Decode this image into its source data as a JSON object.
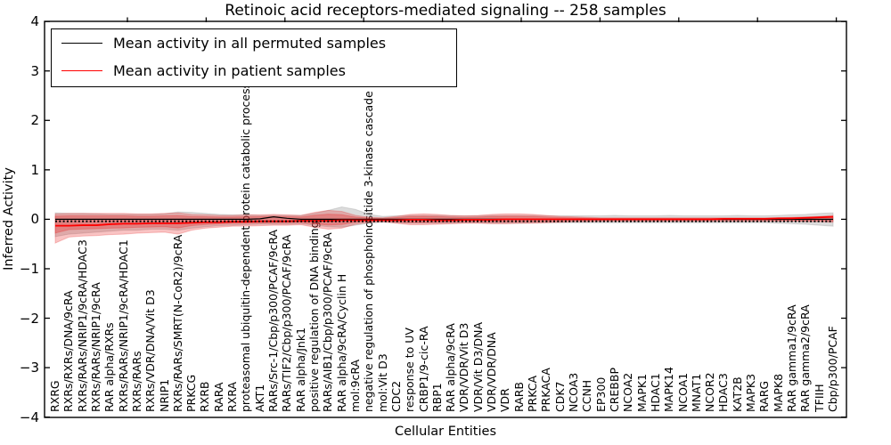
{
  "chart_data": {
    "type": "line",
    "title": "Retinoic acid receptors-mediated signaling -- 258 samples",
    "xlabel": "Cellular Entities",
    "ylabel": "Inferred Activity",
    "ylim": [
      -4,
      4
    ],
    "yticks": [
      4,
      3,
      2,
      1,
      0,
      -1,
      -2,
      -3,
      -4
    ],
    "grid": false,
    "legend_position": "upper left",
    "legend": [
      {
        "label": "Mean activity in all permuted samples",
        "color": "#000000"
      },
      {
        "label": "Mean activity in patient samples",
        "color": "#ff0000"
      }
    ],
    "categories": [
      "RXRG",
      "RXRs/RXRs/DNA/9cRA",
      "RXRs/RARs/NRIP1/9cRA/HDAC3",
      "RXRs/RARs/NRIP1/9cRA",
      "RAR alpha/RXRs",
      "RXRs/RARs/NRIP1/9cRA/HDAC1",
      "RXRs/RARs",
      "RXRs/VDR/DNA/Vit D3",
      "NRIP1",
      "RXRs/RARs/SMRT(N-CoR2)/9cRA",
      "PRKCG",
      "RXRB",
      "RARA",
      "RXRA",
      "proteasomal ubiquitin-dependent protein catabolic process",
      "AKT1",
      "RARs/Src-1/Cbp/p300/PCAF/9cRA",
      "RARs/TIF2/Cbp/p300/PCAF/9cRA",
      "RAR alpha/Jnk1",
      "positive regulation of DNA binding",
      "RARs/AIB1/Cbp/p300/PCAF/9cRA",
      "RAR alpha/9cRA/Cyclin H",
      "mol:9cRA",
      "negative regulation of phosphoinositide 3-kinase cascade",
      "mol:Vit D3",
      "CDC2",
      "response to UV",
      "CRBP1/9-cic-RA",
      "RBP1",
      "RAR alpha/9cRA",
      "VDR/VDR/Vit D3",
      "VDR/Vit D3/DNA",
      "VDR/VDR/DNA",
      "VDR",
      "RARB",
      "PRKCA",
      "PRKACA",
      "CDK7",
      "NCOA3",
      "CCNH",
      "EP300",
      "CREBBP",
      "NCOA2",
      "MAPK1",
      "HDAC1",
      "MAPK14",
      "NCOA1",
      "MNAT1",
      "NCOR2",
      "HDAC3",
      "KAT2B",
      "MAPK3",
      "RARG",
      "MAPK8",
      "RAR gamma1/9cRA",
      "RAR gamma2/9cRA",
      "TFIIH",
      "Cbp/p300/PCAF"
    ],
    "series": [
      {
        "name": "Mean activity in all permuted samples",
        "color": "#000000",
        "style": "solid",
        "linewidth": 1.2,
        "values": [
          0,
          0,
          0,
          0,
          0,
          0,
          0,
          0,
          0,
          0,
          0,
          0,
          0,
          0,
          0,
          0.01,
          0.05,
          0.02,
          0,
          0,
          0,
          0,
          0,
          0,
          0,
          0,
          0,
          0,
          0,
          0,
          0,
          0,
          0,
          0,
          0,
          0,
          0,
          0,
          0,
          0,
          0,
          0,
          0,
          0,
          0,
          0,
          0,
          0,
          0,
          0,
          0,
          0,
          0,
          0,
          0,
          0,
          0,
          0
        ]
      },
      {
        "name": "Mean activity in patient samples",
        "color": "#ff0000",
        "style": "solid",
        "linewidth": 1.8,
        "values": [
          -0.13,
          -0.13,
          -0.12,
          -0.12,
          -0.1,
          -0.09,
          -0.09,
          -0.08,
          -0.08,
          -0.08,
          -0.07,
          -0.06,
          -0.06,
          -0.05,
          -0.05,
          -0.04,
          -0.04,
          -0.04,
          -0.03,
          -0.03,
          -0.03,
          -0.02,
          -0.02,
          -0.02,
          -0.02,
          -0.02,
          -0.01,
          -0.01,
          -0.02,
          -0.02,
          -0.01,
          -0.01,
          -0.01,
          0,
          0,
          0,
          0,
          0,
          0,
          0,
          0,
          0,
          0,
          0,
          0,
          0,
          0,
          0,
          0,
          0.01,
          0.01,
          0.01,
          0.01,
          0.02,
          0.02,
          0.03,
          0.04,
          0.05
        ]
      },
      {
        "name": "permuted baseline (dotted)",
        "color": "#000000",
        "style": "dotted",
        "linewidth": 2,
        "constant": -0.04
      }
    ],
    "bands": [
      {
        "name": "permuted samples spread",
        "color": "#808080",
        "opacity": 0.28,
        "upper": [
          0.13,
          0.12,
          0.12,
          0.11,
          0.1,
          0.1,
          0.1,
          0.1,
          0.11,
          0.15,
          0.14,
          0.12,
          0.1,
          0.09,
          0.09,
          0.08,
          0.08,
          0.08,
          0.08,
          0.12,
          0.18,
          0.25,
          0.2,
          0.1,
          0.06,
          0.07,
          0.08,
          0.08,
          0.08,
          0.07,
          0.07,
          0.07,
          0.08,
          0.08,
          0.08,
          0.08,
          0.07,
          0.07,
          0.07,
          0.07,
          0.07,
          0.08,
          0.07,
          0.07,
          0.07,
          0.08,
          0.07,
          0.07,
          0.07,
          0.07,
          0.08,
          0.07,
          0.07,
          0.08,
          0.09,
          0.1,
          0.12,
          0.13
        ],
        "lower": [
          -0.35,
          -0.3,
          -0.28,
          -0.26,
          -0.24,
          -0.22,
          -0.22,
          -0.2,
          -0.2,
          -0.22,
          -0.18,
          -0.15,
          -0.13,
          -0.12,
          -0.11,
          -0.1,
          -0.1,
          -0.1,
          -0.09,
          -0.12,
          -0.15,
          -0.16,
          -0.12,
          -0.08,
          -0.06,
          -0.07,
          -0.08,
          -0.08,
          -0.08,
          -0.08,
          -0.07,
          -0.07,
          -0.08,
          -0.08,
          -0.08,
          -0.07,
          -0.07,
          -0.07,
          -0.07,
          -0.07,
          -0.07,
          -0.07,
          -0.07,
          -0.07,
          -0.07,
          -0.07,
          -0.07,
          -0.07,
          -0.07,
          -0.07,
          -0.07,
          -0.07,
          -0.07,
          -0.08,
          -0.09,
          -0.1,
          -0.12,
          -0.14
        ]
      },
      {
        "name": "patient samples spread (outer)",
        "color": "#e82323",
        "opacity": 0.27,
        "upper": [
          0.11,
          0.12,
          0.12,
          0.12,
          0.12,
          0.12,
          0.11,
          0.11,
          0.12,
          0.13,
          0.1,
          0.09,
          0.08,
          0.08,
          0.09,
          0.09,
          0.1,
          0.09,
          0.08,
          0.14,
          0.18,
          0.16,
          0.08,
          0.04,
          0.03,
          0.06,
          0.1,
          0.11,
          0.1,
          0.08,
          0.07,
          0.08,
          0.1,
          0.11,
          0.11,
          0.1,
          0.08,
          0.06,
          0.05,
          0.04,
          0.03,
          0.03,
          0.03,
          0.03,
          0.03,
          0.03,
          0.03,
          0.03,
          0.03,
          0.03,
          0.03,
          0.03,
          0.03,
          0.03,
          0.04,
          0.05,
          0.06,
          0.08
        ],
        "lower": [
          -0.48,
          -0.36,
          -0.34,
          -0.33,
          -0.31,
          -0.3,
          -0.28,
          -0.27,
          -0.26,
          -0.3,
          -0.22,
          -0.18,
          -0.16,
          -0.14,
          -0.14,
          -0.13,
          -0.12,
          -0.12,
          -0.11,
          -0.16,
          -0.2,
          -0.18,
          -0.1,
          -0.06,
          -0.05,
          -0.08,
          -0.11,
          -0.11,
          -0.1,
          -0.09,
          -0.08,
          -0.08,
          -0.09,
          -0.09,
          -0.08,
          -0.08,
          -0.07,
          -0.06,
          -0.05,
          -0.05,
          -0.04,
          -0.04,
          -0.04,
          -0.04,
          -0.04,
          -0.04,
          -0.04,
          -0.04,
          -0.04,
          -0.04,
          -0.04,
          -0.04,
          -0.04,
          -0.04,
          -0.04,
          -0.05,
          -0.05,
          -0.06
        ]
      },
      {
        "name": "patient samples spread (inner)",
        "color": "#e82323",
        "opacity": 0.3,
        "scale_of_outer": 0.58
      }
    ]
  }
}
